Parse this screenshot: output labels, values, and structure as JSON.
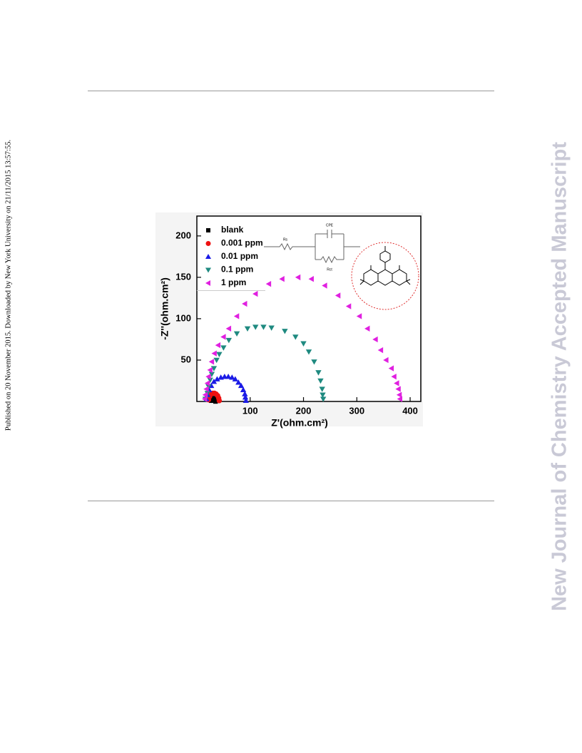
{
  "side_text": "Published on 20 November 2015. Downloaded by New York University on 21/11/2015 13:57:55.",
  "watermark": "New Journal of Chemistry Accepted Manuscript",
  "chart_data": {
    "type": "scatter",
    "xlabel": "Z'(ohm.cm²)",
    "ylabel": "-Z''(ohm.cm²)",
    "circuit_labels": [
      "Rs",
      "CPE",
      "Rct"
    ],
    "xlim": [
      0,
      420
    ],
    "ylim": [
      0,
      224
    ],
    "xticks": [
      100,
      200,
      300,
      400
    ],
    "yticks": [
      50,
      100,
      150,
      200
    ],
    "legend": "upper left",
    "series": [
      {
        "name": "blank",
        "color": "#000000",
        "marker": "square",
        "x": [
          27,
          29,
          31,
          33,
          34,
          35
        ],
        "values": [
          1,
          3,
          4,
          3,
          2,
          0
        ]
      },
      {
        "name": "0.001 ppm",
        "color": "#ee1111",
        "marker": "circle",
        "x": [
          22,
          24,
          27,
          30,
          33,
          36,
          39,
          41,
          42
        ],
        "values": [
          2,
          6,
          9,
          10,
          10,
          9,
          7,
          4,
          1
        ]
      },
      {
        "name": "0.01 ppm",
        "color": "#1a1ae6",
        "marker": "triangle-up",
        "x": [
          18,
          20,
          23,
          27,
          32,
          38,
          45,
          52,
          59,
          66,
          72,
          78,
          83,
          87,
          90,
          91,
          92
        ],
        "values": [
          3,
          8,
          14,
          19,
          24,
          27,
          29,
          30,
          30,
          29,
          27,
          23,
          19,
          14,
          9,
          5,
          1
        ]
      },
      {
        "name": "0.1 ppm",
        "color": "#1f8a80",
        "marker": "triangle-down",
        "x": [
          16,
          20,
          22,
          25,
          28,
          32,
          37,
          42,
          50,
          60,
          75,
          95,
          110,
          125,
          140,
          165,
          185,
          200,
          210,
          220,
          228,
          232,
          235,
          236,
          237
        ],
        "values": [
          3,
          10,
          18,
          26,
          33,
          40,
          50,
          57,
          65,
          74,
          82,
          88,
          90,
          90,
          89,
          85,
          78,
          70,
          60,
          48,
          35,
          25,
          15,
          8,
          3
        ]
      },
      {
        "name": "1 ppm",
        "color": "#e020e0",
        "marker": "triangle-left",
        "x": [
          15,
          16,
          18,
          20,
          22,
          25,
          28,
          33,
          40,
          50,
          60,
          75,
          90,
          110,
          135,
          160,
          190,
          215,
          240,
          265,
          285,
          305,
          320,
          335,
          345,
          355,
          365,
          370,
          375,
          378,
          380,
          381
        ],
        "values": [
          3,
          8,
          15,
          22,
          30,
          38,
          48,
          58,
          68,
          78,
          88,
          103,
          118,
          130,
          142,
          148,
          150,
          148,
          140,
          128,
          115,
          103,
          88,
          75,
          62,
          50,
          40,
          30,
          22,
          15,
          8,
          3
        ]
      }
    ]
  }
}
